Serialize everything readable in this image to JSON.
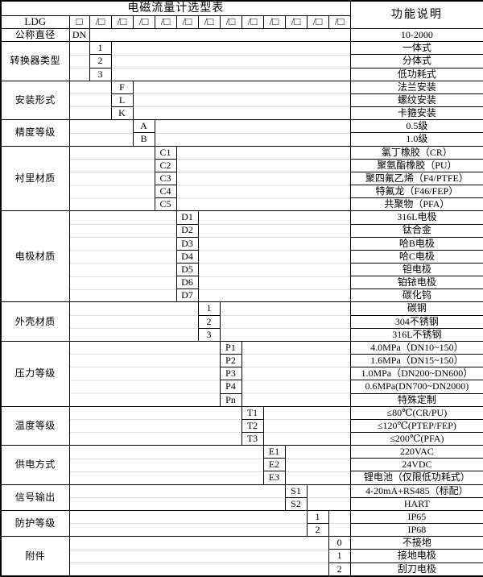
{
  "title": "电磁流量计选型表",
  "right_header": "功能说明",
  "model_row": {
    "label": "LDG",
    "box": "□",
    "slot": "/□"
  },
  "sections": [
    {
      "label": "公称直径",
      "rows": [
        {
          "code": "DN",
          "desc": "10-2000"
        }
      ]
    },
    {
      "label": "转换器类型",
      "rows": [
        {
          "code": "1",
          "desc": "一体式"
        },
        {
          "code": "2",
          "desc": "分体式"
        },
        {
          "code": "3",
          "desc": "低功耗式"
        }
      ]
    },
    {
      "label": "安装形式",
      "rows": [
        {
          "code": "F",
          "desc": "法兰安装"
        },
        {
          "code": "L",
          "desc": "螺纹安装"
        },
        {
          "code": "K",
          "desc": "卡箍安装"
        }
      ]
    },
    {
      "label": "精度等级",
      "rows": [
        {
          "code": "A",
          "desc": "0.5级"
        },
        {
          "code": "B",
          "desc": "1.0级"
        }
      ]
    },
    {
      "label": "衬里材质",
      "rows": [
        {
          "code": "C1",
          "desc": "氯丁橡胶（CR）"
        },
        {
          "code": "C2",
          "desc": "聚氨酯橡胶（PU）"
        },
        {
          "code": "C3",
          "desc": "聚四氟乙烯（F4/PTFE）"
        },
        {
          "code": "C4",
          "desc": "特氟龙（F46/FEP）"
        },
        {
          "code": "C5",
          "desc": "共聚物（PFA）"
        }
      ]
    },
    {
      "label": "电极材质",
      "rows": [
        {
          "code": "D1",
          "desc": "316L电极"
        },
        {
          "code": "D2",
          "desc": "钛合金"
        },
        {
          "code": "D3",
          "desc": "哈B电极"
        },
        {
          "code": "D4",
          "desc": "哈C电极"
        },
        {
          "code": "D5",
          "desc": "钽电极"
        },
        {
          "code": "D6",
          "desc": "铂铱电极"
        },
        {
          "code": "D7",
          "desc": "碳化钨"
        }
      ]
    },
    {
      "label": "外壳材质",
      "rows": [
        {
          "code": "1",
          "desc": "碳钢"
        },
        {
          "code": "2",
          "desc": "304不锈钢"
        },
        {
          "code": "3",
          "desc": "316L不锈钢"
        }
      ]
    },
    {
      "label": "压力等级",
      "rows": [
        {
          "code": "P1",
          "desc": "4.0MPa（DN10~150）",
          "desc_align": "left"
        },
        {
          "code": "P2",
          "desc": "1.6MPa（DN15~150）",
          "desc_align": "left"
        },
        {
          "code": "P3",
          "desc": "1.0MPa（DN200~DN600）",
          "desc_align": "left"
        },
        {
          "code": "P4",
          "desc": "0.6MPa(DN700~DN2000)",
          "desc_align": "left"
        },
        {
          "code": "Pn",
          "desc": "特殊定制"
        }
      ]
    },
    {
      "label": "温度等级",
      "rows": [
        {
          "code": "T1",
          "desc": "≤80℃(CR/PU)"
        },
        {
          "code": "T2",
          "desc": "≤120℃(PTEP/FEP)"
        },
        {
          "code": "T3",
          "desc": "≤200℃(PFA)"
        }
      ]
    },
    {
      "label": "供电方式",
      "rows": [
        {
          "code": "E1",
          "desc": "220VAC"
        },
        {
          "code": "E2",
          "desc": "24VDC"
        },
        {
          "code": "E3",
          "desc": "锂电池（仅限低功耗式）"
        }
      ]
    },
    {
      "label": "信号输出",
      "rows": [
        {
          "code": "S1",
          "desc": "4-20mA+RS485（标配）"
        },
        {
          "code": "S2",
          "desc": "HART"
        }
      ]
    },
    {
      "label": "防护等级",
      "rows": [
        {
          "code": "1",
          "desc": "IP65"
        },
        {
          "code": "2",
          "desc": "IP68"
        }
      ]
    },
    {
      "label": "附件",
      "rows": [
        {
          "code": "0",
          "desc": "不接地"
        },
        {
          "code": "1",
          "desc": "接地电极"
        },
        {
          "code": "2",
          "desc": "刮刀电极"
        }
      ]
    }
  ],
  "colors": {
    "border": "#000000",
    "background": "#ffffff",
    "text": "#000000"
  }
}
